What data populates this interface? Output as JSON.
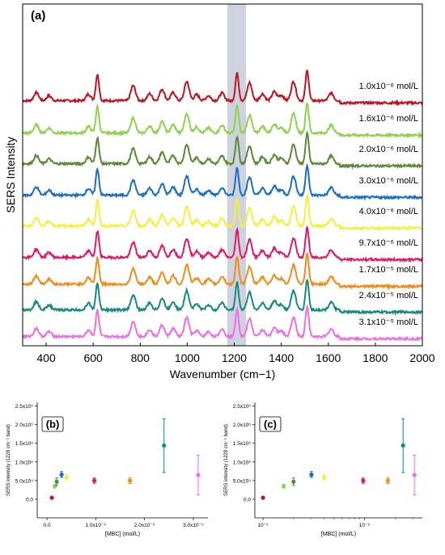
{
  "chart_data": [
    {
      "type": "line",
      "panel_label": "(a)",
      "xlabel": "Wavenumber (cm−1)",
      "ylabel": "SERS Intensity",
      "xlim": [
        300,
        2000
      ],
      "xticks": [
        400,
        600,
        800,
        1000,
        1200,
        1400,
        1600,
        1800,
        2000
      ],
      "highlight_band": [
        1170,
        1250
      ],
      "peaks": [
        {
          "x": 358,
          "h": 0.3
        },
        {
          "x": 412,
          "h": 0.18
        },
        {
          "x": 580,
          "h": 0.24
        },
        {
          "x": 618,
          "h": 0.95
        },
        {
          "x": 770,
          "h": 0.55
        },
        {
          "x": 840,
          "h": 0.25
        },
        {
          "x": 893,
          "h": 0.42
        },
        {
          "x": 940,
          "h": 0.3
        },
        {
          "x": 998,
          "h": 0.7
        },
        {
          "x": 1040,
          "h": 0.22
        },
        {
          "x": 1090,
          "h": 0.18
        },
        {
          "x": 1148,
          "h": 0.28
        },
        {
          "x": 1212,
          "h": 1.0
        },
        {
          "x": 1265,
          "h": 0.65
        },
        {
          "x": 1320,
          "h": 0.25
        },
        {
          "x": 1370,
          "h": 0.33
        },
        {
          "x": 1400,
          "h": 0.2
        },
        {
          "x": 1452,
          "h": 0.7
        },
        {
          "x": 1510,
          "h": 1.1
        },
        {
          "x": 1612,
          "h": 0.28
        }
      ],
      "series": [
        {
          "name": "1.0x10⁻⁶ mol/L",
          "color": "#c0141e"
        },
        {
          "name": "1.6x10⁻⁶ mol/L",
          "color": "#8fd24e"
        },
        {
          "name": "2.0x10⁻⁶ mol/L",
          "color": "#5a8a36"
        },
        {
          "name": "3.0x10⁻⁶ mol/L",
          "color": "#1a6fc4"
        },
        {
          "name": "4.0x10⁻⁶ mol/L",
          "color": "#f5f03c"
        },
        {
          "name": "9.7x10⁻⁶ mol/L",
          "color": "#e0196b"
        },
        {
          "name": "1.7x10⁻⁵ mol/L",
          "color": "#f28a1c"
        },
        {
          "name": "2.4x10⁻⁵ mol/L",
          "color": "#178a80"
        },
        {
          "name": "3.1x10⁻⁵ mol/L",
          "color": "#ee6ee6"
        }
      ]
    },
    {
      "type": "scatter",
      "panel_label": "(b)",
      "xlabel": "[MBC] (mol/L)",
      "ylabel": "SERS intensity (1228 cm⁻¹ band)",
      "xscale": "linear",
      "xlim": [
        -2e-06,
        3.3e-05
      ],
      "ylim": [
        -50000,
        260000
      ],
      "xticks": [
        {
          "v": 0,
          "label": "0.0"
        },
        {
          "v": 1e-05,
          "label": "1.0x10⁻⁵"
        },
        {
          "v": 2e-05,
          "label": "2.0x10⁻⁵"
        },
        {
          "v": 3e-05,
          "label": "3.0x10⁻⁵"
        }
      ],
      "yticks": [
        {
          "v": 0,
          "label": "0.0"
        },
        {
          "v": 50000,
          "label": "5.0x10⁴"
        },
        {
          "v": 100000,
          "label": "1.0x10⁵"
        },
        {
          "v": 150000,
          "label": "1.5x10⁵"
        },
        {
          "v": 200000,
          "label": "2.0x10⁵"
        },
        {
          "v": 250000,
          "label": "2.5x10⁵"
        }
      ],
      "points": [
        {
          "x": 1e-06,
          "y": 4000,
          "err": 0,
          "color": "#c0141e"
        },
        {
          "x": 1.6e-06,
          "y": 35000,
          "err": 5000,
          "color": "#8fd24e"
        },
        {
          "x": 2e-06,
          "y": 47000,
          "err": 10000,
          "color": "#5a8a36"
        },
        {
          "x": 3e-06,
          "y": 66000,
          "err": 8000,
          "color": "#1a6fc4"
        },
        {
          "x": 4e-06,
          "y": 59000,
          "err": 7000,
          "color": "#f5f03c"
        },
        {
          "x": 9.7e-06,
          "y": 50000,
          "err": 7000,
          "color": "#e0196b"
        },
        {
          "x": 1.7e-05,
          "y": 50000,
          "err": 8000,
          "color": "#f28a1c"
        },
        {
          "x": 2.4e-05,
          "y": 144000,
          "err": 72000,
          "color": "#178a80"
        },
        {
          "x": 3.1e-05,
          "y": 65000,
          "err": 53000,
          "color": "#ee6ee6"
        }
      ]
    },
    {
      "type": "scatter",
      "panel_label": "(c)",
      "xlabel": "[MBC] (mol/L)",
      "ylabel": "SERS intensity (1228 cm⁻¹ band)",
      "xscale": "log",
      "xlim_log": [
        -6.08,
        -4.43
      ],
      "ylim": [
        -50000,
        260000
      ],
      "xticks": [
        {
          "v": 1e-06,
          "label": "10⁻⁶"
        },
        {
          "v": 1e-05,
          "label": "10⁻⁵"
        }
      ],
      "yticks": [
        {
          "v": 0,
          "label": "0.0"
        },
        {
          "v": 50000,
          "label": "5.0x10⁴"
        },
        {
          "v": 100000,
          "label": "1.0x10⁵"
        },
        {
          "v": 150000,
          "label": "1.5x10⁵"
        },
        {
          "v": 200000,
          "label": "2.0x10⁵"
        },
        {
          "v": 250000,
          "label": "2.5x10⁵"
        }
      ],
      "points": [
        {
          "x": 1e-06,
          "y": 4000,
          "err": 0,
          "color": "#c0141e"
        },
        {
          "x": 1.6e-06,
          "y": 35000,
          "err": 5000,
          "color": "#8fd24e"
        },
        {
          "x": 2e-06,
          "y": 47000,
          "err": 10000,
          "color": "#5a8a36"
        },
        {
          "x": 3e-06,
          "y": 66000,
          "err": 8000,
          "color": "#1a6fc4"
        },
        {
          "x": 4e-06,
          "y": 59000,
          "err": 7000,
          "color": "#f5f03c"
        },
        {
          "x": 9.7e-06,
          "y": 50000,
          "err": 7000,
          "color": "#e0196b"
        },
        {
          "x": 1.7e-05,
          "y": 50000,
          "err": 8000,
          "color": "#f28a1c"
        },
        {
          "x": 2.4e-05,
          "y": 144000,
          "err": 72000,
          "color": "#178a80"
        },
        {
          "x": 3.1e-05,
          "y": 65000,
          "err": 53000,
          "color": "#ee6ee6"
        }
      ]
    }
  ]
}
